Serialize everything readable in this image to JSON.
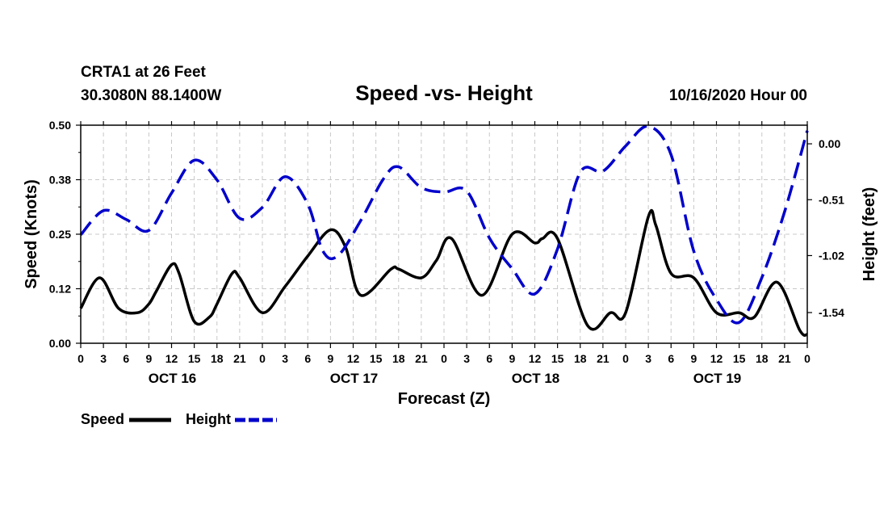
{
  "header": {
    "station_line": "CRTA1 at 26 Feet",
    "coords_line": "30.3080N 88.1400W",
    "run_time": "10/16/2020 Hour 00"
  },
  "chart_data": {
    "type": "line",
    "title": "Speed -vs- Height",
    "xlabel": "Forecast (Z)",
    "ylabel": "Speed (Knots)",
    "y2label": "Height (feet)",
    "grid": true,
    "legend_position": "bottom-left",
    "x_range_hours": [
      0,
      96
    ],
    "x_tick_step_hours": 3,
    "x_tick_labels": [
      "0",
      "3",
      "6",
      "9",
      "12",
      "15",
      "18",
      "21",
      "0",
      "3",
      "6",
      "9",
      "12",
      "15",
      "18",
      "21",
      "0",
      "3",
      "6",
      "9",
      "12",
      "15",
      "18",
      "21",
      "0",
      "3",
      "6",
      "9",
      "12",
      "15",
      "18",
      "21",
      "0"
    ],
    "x_day_labels": [
      {
        "hour": 12,
        "label": "OCT 16"
      },
      {
        "hour": 36,
        "label": "OCT 17"
      },
      {
        "hour": 60,
        "label": "OCT 18"
      },
      {
        "hour": 84,
        "label": "OCT 19"
      }
    ],
    "y_left": {
      "range": [
        0,
        0.5
      ],
      "ticks": [
        0,
        0.125,
        0.25,
        0.375,
        0.5
      ],
      "tick_labels": [
        "0.00",
        "0.12",
        "0.25",
        "0.38",
        "0.50"
      ]
    },
    "y_right": {
      "range": [
        -1.82,
        0.17
      ],
      "ticks": [
        0,
        -0.51,
        -1.02,
        -1.54
      ],
      "tick_labels": [
        "0.00",
        "-0.51",
        "-1.02",
        "-1.54"
      ]
    },
    "series": [
      {
        "name": "Speed",
        "axis": "left",
        "color": "#000000",
        "dash": "solid",
        "x": [
          0,
          2.5,
          5,
          7.5,
          9,
          10,
          12,
          13,
          15,
          17,
          18,
          20,
          21,
          24,
          27,
          30,
          33,
          35,
          37,
          41,
          42,
          45,
          47,
          49,
          53,
          57,
          60,
          61,
          63,
          67,
          70,
          72,
          75,
          76,
          78,
          81,
          84,
          87,
          89,
          92,
          95,
          96
        ],
        "values": [
          0.08,
          0.15,
          0.08,
          0.07,
          0.09,
          0.12,
          0.18,
          0.16,
          0.05,
          0.06,
          0.09,
          0.16,
          0.15,
          0.07,
          0.13,
          0.2,
          0.26,
          0.22,
          0.11,
          0.17,
          0.17,
          0.15,
          0.19,
          0.24,
          0.11,
          0.25,
          0.23,
          0.24,
          0.24,
          0.04,
          0.07,
          0.07,
          0.29,
          0.27,
          0.16,
          0.15,
          0.07,
          0.07,
          0.06,
          0.14,
          0.03,
          0.02
        ]
      },
      {
        "name": "Height",
        "axis": "right",
        "color": "#0000cc",
        "dash": "dashed",
        "x": [
          0,
          3,
          6,
          9,
          12,
          15,
          18,
          21,
          24,
          27,
          30,
          32,
          34,
          37,
          40,
          42,
          45,
          48,
          51,
          54,
          57,
          60,
          63,
          66,
          69,
          72,
          75,
          78,
          81,
          84,
          87,
          90,
          93,
          96
        ],
        "values": [
          -0.83,
          -0.61,
          -0.69,
          -0.79,
          -0.45,
          -0.15,
          -0.33,
          -0.68,
          -0.58,
          -0.3,
          -0.55,
          -0.98,
          -1.02,
          -0.7,
          -0.32,
          -0.21,
          -0.4,
          -0.44,
          -0.43,
          -0.86,
          -1.14,
          -1.37,
          -0.96,
          -0.26,
          -0.25,
          -0.02,
          0.16,
          -0.1,
          -0.98,
          -1.42,
          -1.63,
          -1.22,
          -0.62,
          0.12
        ]
      }
    ]
  }
}
